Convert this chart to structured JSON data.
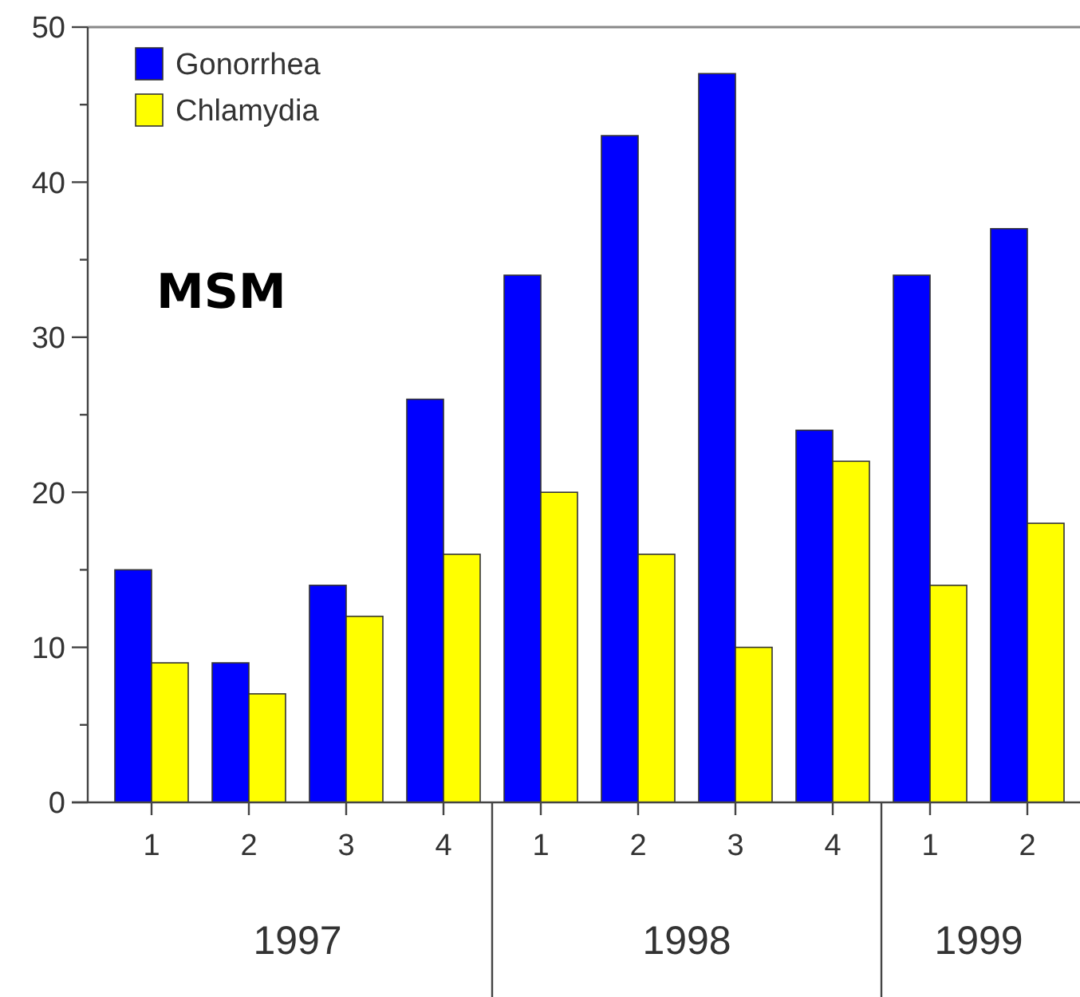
{
  "chart_data": {
    "type": "bar",
    "categories": [
      "1",
      "2",
      "3",
      "4",
      "1",
      "2",
      "3",
      "4",
      "1",
      "2"
    ],
    "series": [
      {
        "name": "Gonorrhea",
        "color": "#0000ff",
        "values": [
          15,
          9,
          14,
          26,
          34,
          43,
          47,
          24,
          34,
          37
        ]
      },
      {
        "name": "Chlamydia",
        "color": "#ffff00",
        "values": [
          9,
          7,
          12,
          16,
          20,
          16,
          10,
          22,
          14,
          18
        ]
      }
    ],
    "ylim": [
      0,
      50
    ],
    "yticks": [
      0,
      {
        "value": 5,
        "label": null
      },
      10,
      {
        "value": 15,
        "label": null
      },
      20,
      {
        "value": 25,
        "label": null
      },
      30,
      {
        "value": 35,
        "label": null
      },
      40,
      {
        "value": 45,
        "label": null
      },
      50
    ],
    "annotations": [
      "MSM",
      "1997",
      "1998",
      "1999"
    ],
    "legend": "top left",
    "grid": false
  }
}
